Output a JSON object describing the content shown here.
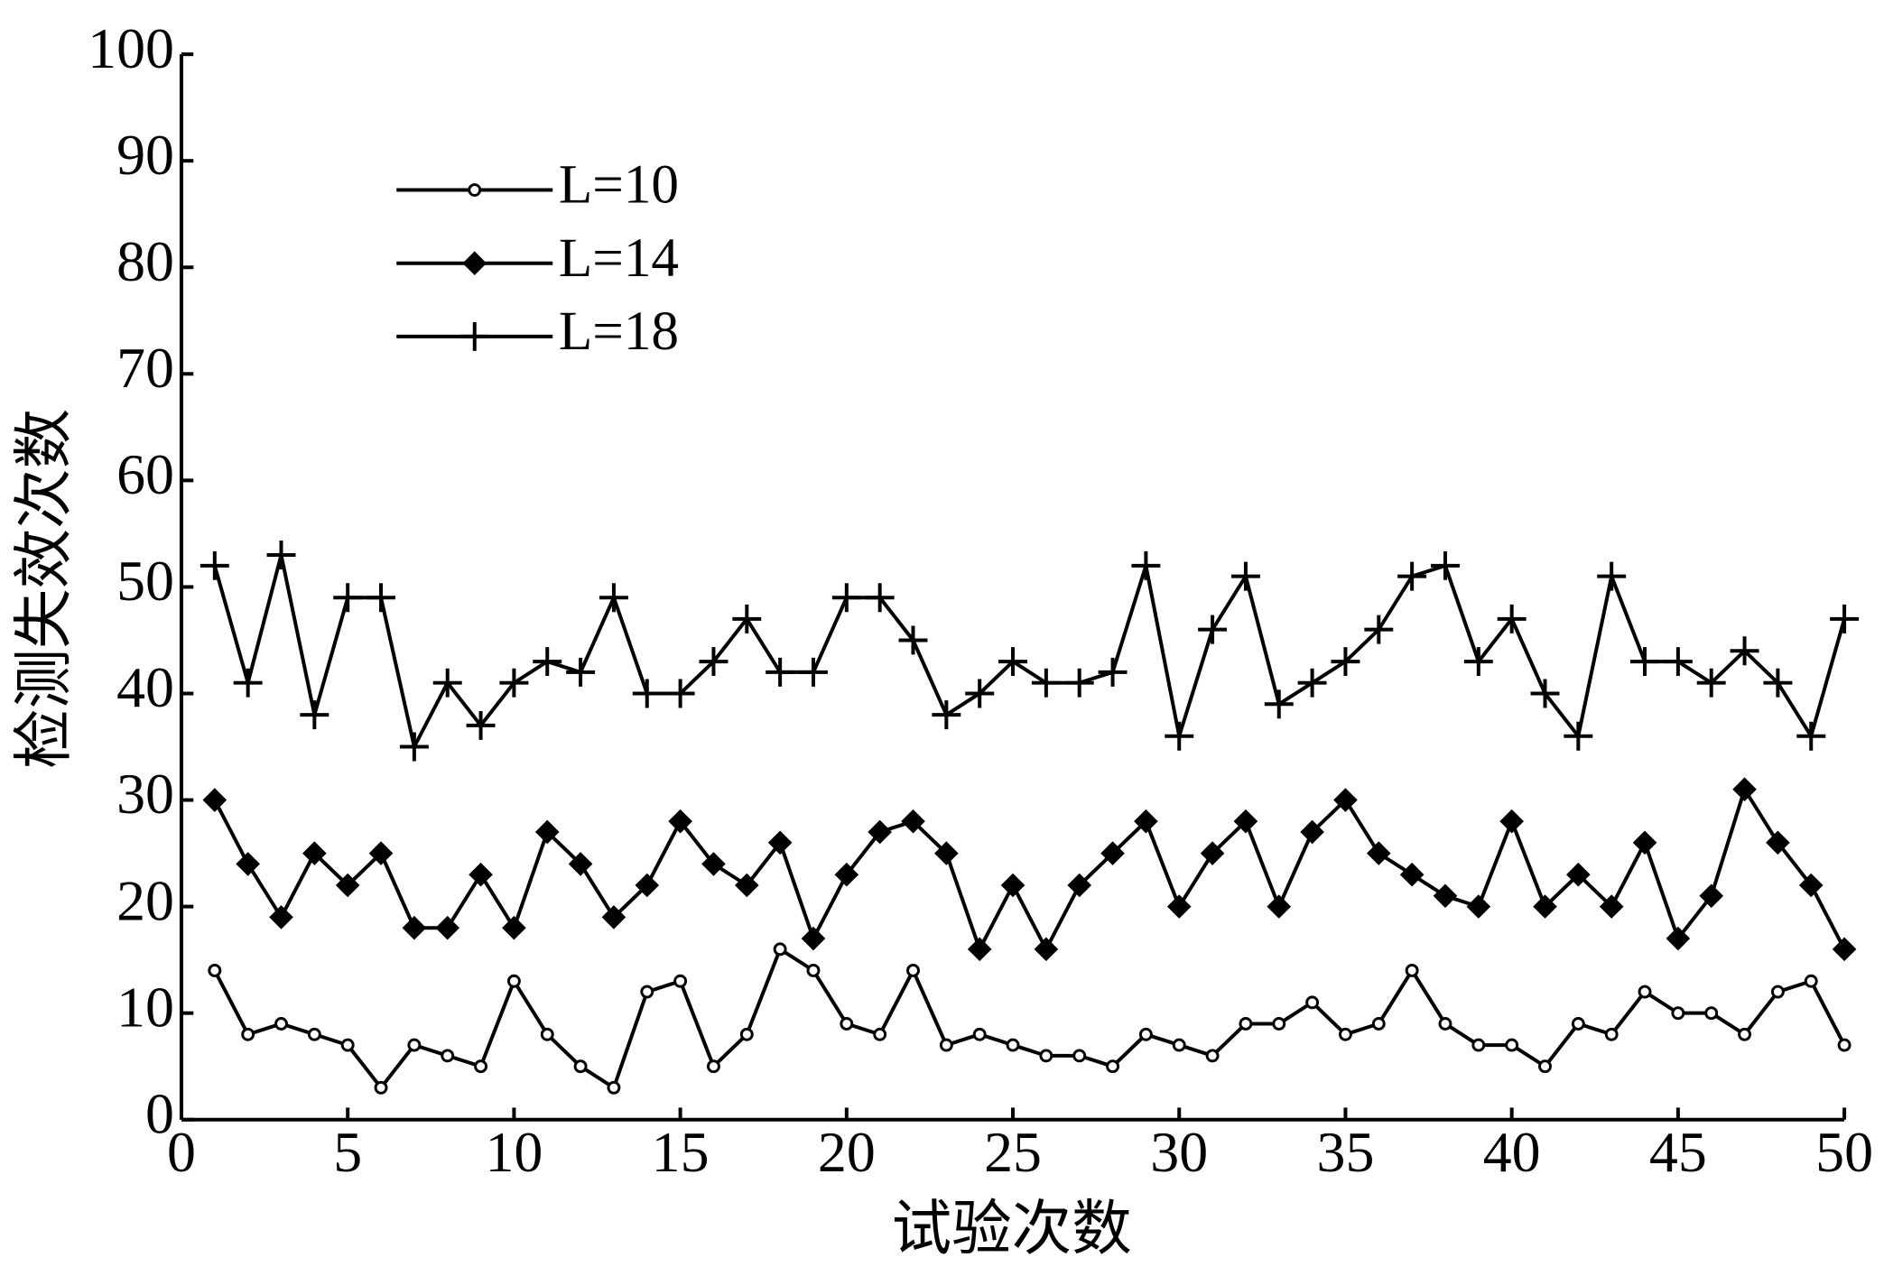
{
  "chart_data": {
    "type": "line",
    "x_label": "试验次数",
    "y_label": "检测失效次数",
    "x": [
      1,
      2,
      3,
      4,
      5,
      6,
      7,
      8,
      9,
      10,
      11,
      12,
      13,
      14,
      15,
      16,
      17,
      18,
      19,
      20,
      21,
      22,
      23,
      24,
      25,
      26,
      27,
      28,
      29,
      30,
      31,
      32,
      33,
      34,
      35,
      36,
      37,
      38,
      39,
      40,
      41,
      42,
      43,
      44,
      45,
      46,
      47,
      48,
      49,
      50
    ],
    "series": [
      {
        "name": "L=10",
        "color": "#000000",
        "marker": "circle",
        "values": [
          14,
          8,
          9,
          8,
          7,
          3,
          7,
          6,
          5,
          13,
          8,
          5,
          3,
          12,
          13,
          5,
          8,
          16,
          14,
          9,
          8,
          14,
          7,
          8,
          7,
          6,
          6,
          5,
          8,
          7,
          6,
          9,
          9,
          11,
          8,
          9,
          14,
          9,
          7,
          7,
          5,
          9,
          8,
          12,
          10,
          10,
          8,
          12,
          13,
          7
        ]
      },
      {
        "name": "L=14",
        "color": "#000000",
        "marker": "diamond",
        "values": [
          30,
          24,
          19,
          25,
          22,
          25,
          18,
          18,
          23,
          18,
          27,
          24,
          19,
          22,
          28,
          24,
          22,
          26,
          17,
          23,
          27,
          28,
          25,
          16,
          22,
          16,
          22,
          25,
          28,
          20,
          25,
          28,
          20,
          27,
          30,
          25,
          23,
          21,
          20,
          28,
          20,
          23,
          20,
          26,
          17,
          21,
          31,
          26,
          22,
          16
        ]
      },
      {
        "name": "L=18",
        "color": "#000000",
        "marker": "plus",
        "values": [
          52,
          41,
          53,
          38,
          49,
          49,
          35,
          41,
          37,
          41,
          43,
          42,
          49,
          40,
          40,
          43,
          47,
          42,
          42,
          49,
          49,
          45,
          38,
          40,
          43,
          41,
          41,
          42,
          52,
          36,
          46,
          51,
          39,
          41,
          43,
          46,
          51,
          52,
          43,
          47,
          40,
          36,
          51,
          43,
          43,
          41,
          44,
          41,
          36,
          47
        ]
      }
    ],
    "xlim": [
      0,
      50
    ],
    "xticks": [
      0,
      5,
      10,
      15,
      20,
      25,
      30,
      35,
      40,
      45,
      50
    ],
    "ylim": [
      0,
      100
    ],
    "yticks": [
      0,
      10,
      20,
      30,
      40,
      50,
      60,
      70,
      80,
      90,
      100
    ],
    "grid": false,
    "legend": "upper left"
  }
}
